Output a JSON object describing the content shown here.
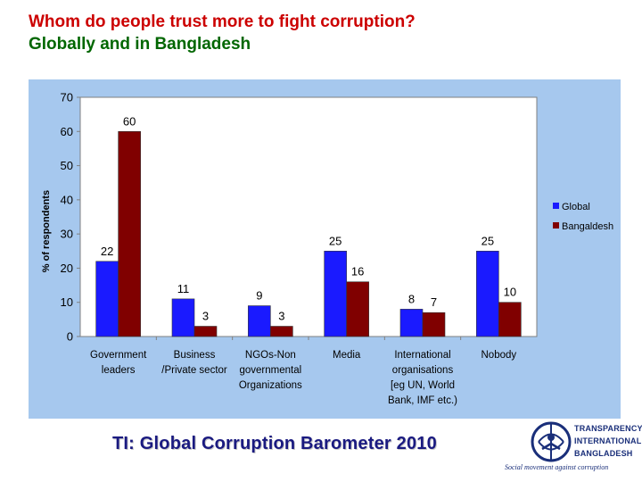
{
  "slide": {
    "title_line1": "Whom do people trust more to fight corruption?",
    "title_line2": "Globally and in Bangladesh",
    "footer": "TI: Global Corruption Barometer 2010",
    "title_color": "#cc0000",
    "title2_color": "#006600"
  },
  "logo": {
    "line1": "TRANSPARENCY",
    "line2": "INTERNATIONAL",
    "line3": "BANGLADESH",
    "tagline": "Social movement against corruption"
  },
  "chart_data": {
    "type": "bar",
    "categories": [
      [
        "Government",
        "leaders"
      ],
      [
        "Business",
        "/Private sector"
      ],
      [
        "NGOs-Non",
        "governmental",
        "Organizations"
      ],
      [
        "Media"
      ],
      [
        "International",
        "organisations",
        "[eg UN, World",
        "Bank, IMF etc.)"
      ],
      [
        "Nobody"
      ]
    ],
    "series": [
      {
        "name": "Global",
        "values": [
          22,
          11,
          9,
          25,
          8,
          25
        ],
        "color": "#1a1aff"
      },
      {
        "name": "Bangaldesh",
        "values": [
          60,
          3,
          3,
          16,
          7,
          10
        ],
        "color": "#800000"
      }
    ],
    "ylabel": "% of respondents",
    "ylim": [
      0,
      70
    ],
    "yticks": [
      0,
      10,
      20,
      30,
      40,
      50,
      60,
      70
    ],
    "grid": false,
    "legend": "right",
    "panel_color": "#a6c8ee",
    "plot_color": "#ffffff"
  }
}
